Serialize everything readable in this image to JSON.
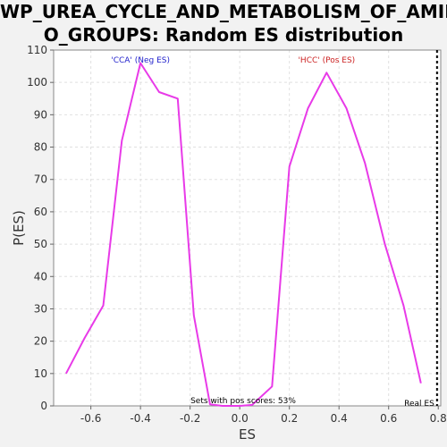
{
  "title": {
    "line1": "WP_UREA_CYCLE_AND_METABOLISM_OF_AMIN",
    "line2": "O_GROUPS: Random ES distribution"
  },
  "chart_data": {
    "type": "line",
    "xlabel": "ES",
    "ylabel": "P(ES)",
    "xlim": [
      -0.75,
      0.81
    ],
    "ylim": [
      0,
      110
    ],
    "x_ticks": [
      -0.6,
      -0.4,
      -0.2,
      0.0,
      0.2,
      0.4,
      0.6,
      0.8
    ],
    "x_tick_labels": [
      "-0.6",
      "-0.4",
      "-0.2",
      "0.0",
      "0.2",
      "0.4",
      "0.6",
      "0.8"
    ],
    "y_ticks": [
      0,
      10,
      20,
      30,
      40,
      50,
      60,
      70,
      80,
      90,
      100,
      110
    ],
    "y_tick_labels": [
      "0",
      "10",
      "20",
      "30",
      "40",
      "50",
      "60",
      "70",
      "80",
      "90",
      "100",
      "110"
    ],
    "grid": true,
    "series": [
      {
        "color": "#e83ae8",
        "x": [
          -0.7,
          -0.625,
          -0.55,
          -0.475,
          -0.4,
          -0.325,
          -0.25,
          -0.185,
          -0.12,
          -0.07,
          0.0,
          0.05,
          0.13,
          0.2,
          0.275,
          0.35,
          0.43,
          0.505,
          0.585,
          0.66,
          0.73
        ],
        "y": [
          10,
          21,
          31,
          82,
          106,
          97,
          95,
          28,
          0.5,
          0,
          0,
          0.3,
          6,
          74,
          92,
          103,
          92,
          75,
          50,
          31,
          7
        ]
      }
    ],
    "annotations": {
      "neg_label": {
        "text": "'CCA' (Neg ES)",
        "x": -0.4,
        "color": "#2222cc"
      },
      "pos_label": {
        "text": "'HCC' (Pos ES)",
        "x": 0.35,
        "color": "#cc2222"
      },
      "pos_scores_text": "Sets with pos scores: 53%",
      "real_es": {
        "text": "Real ES",
        "x": 0.795
      }
    }
  }
}
